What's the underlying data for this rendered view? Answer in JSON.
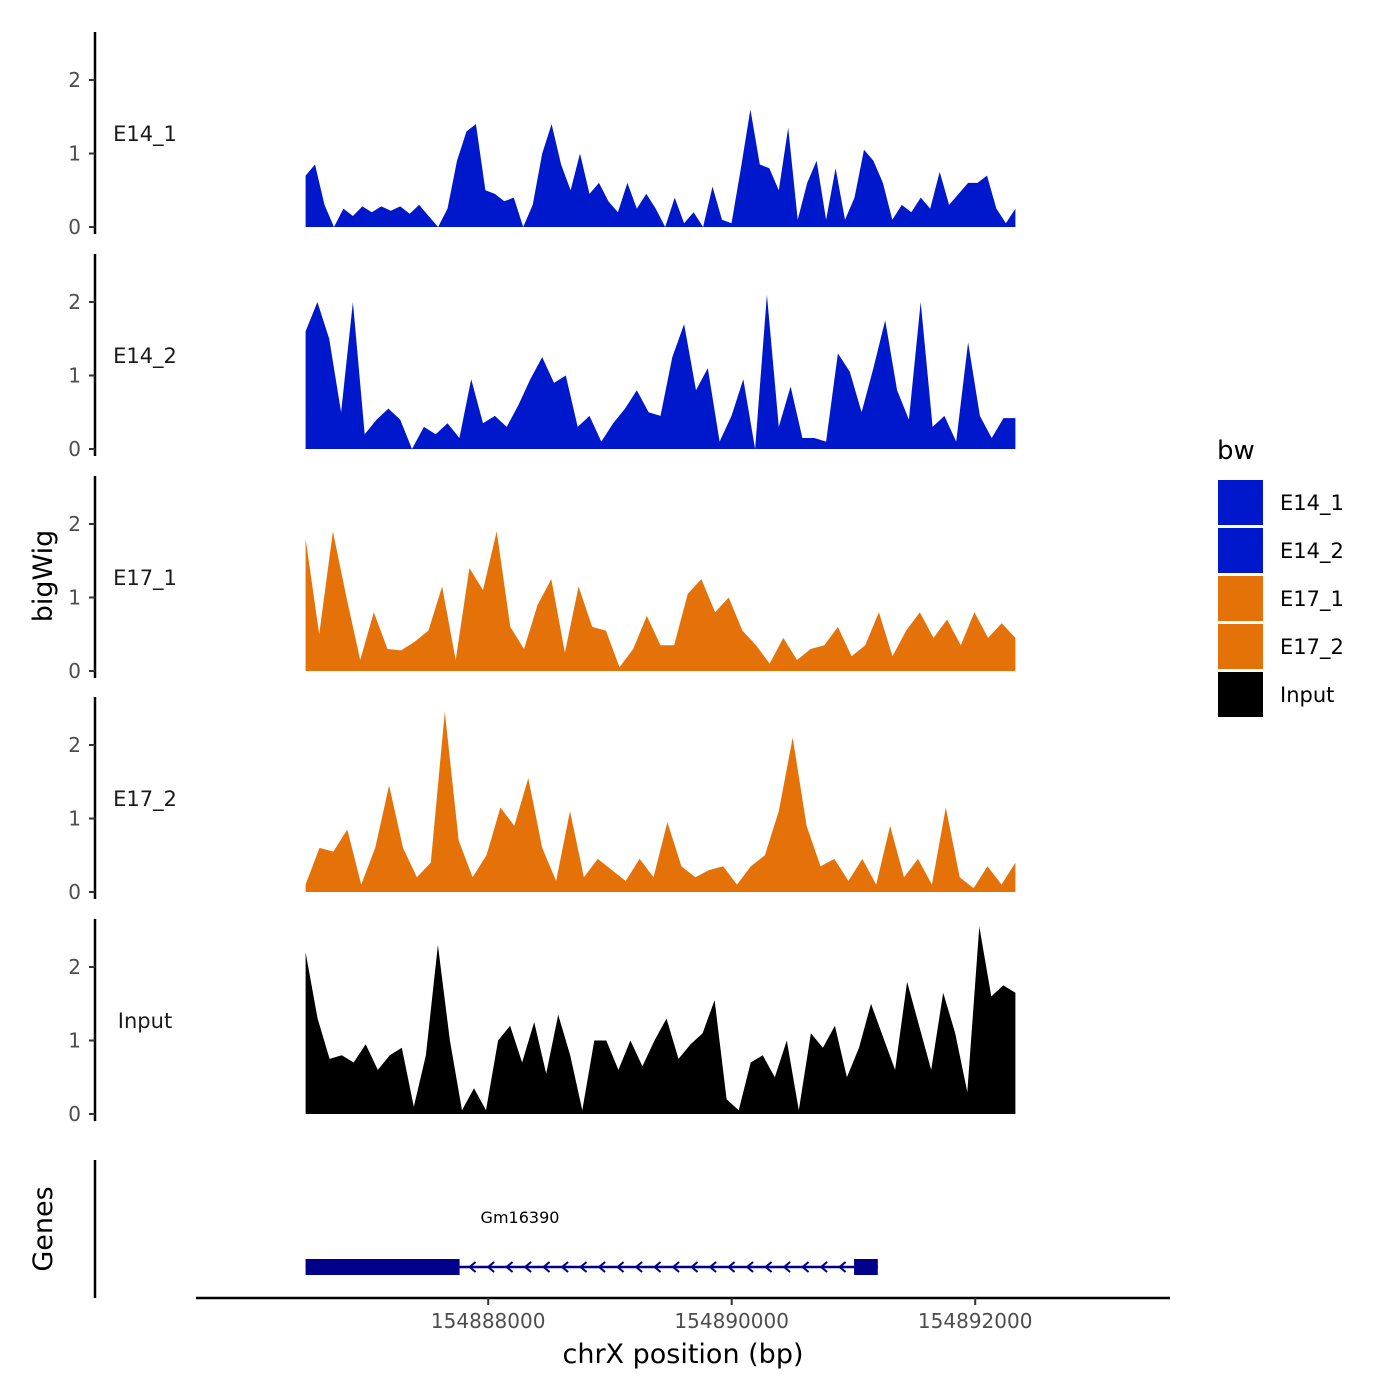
{
  "chart_data": {
    "type": "area",
    "title": "",
    "ylabel": "bigWig",
    "xlabel": "chrX position (bp)",
    "genes_label": "Genes",
    "ylim": [
      0,
      2.6
    ],
    "y_ticks": [
      "0",
      "1",
      "2"
    ],
    "x_ticks": [
      {
        "value": 154888000,
        "label": "154888000"
      },
      {
        "value": 154890000,
        "label": "154890000"
      },
      {
        "value": 154892000,
        "label": "154892000"
      }
    ],
    "xlim": [
      154885600,
      154893600
    ],
    "x_start": 154886500,
    "x_end": 154892330,
    "legend": {
      "title": "bw",
      "entries": [
        {
          "label": "E14_1",
          "color": "#0018CC"
        },
        {
          "label": "E14_2",
          "color": "#0018CC"
        },
        {
          "label": "E17_1",
          "color": "#E57208"
        },
        {
          "label": "E17_2",
          "color": "#E57208"
        },
        {
          "label": "Input",
          "color": "#000000"
        }
      ]
    },
    "series": [
      {
        "name": "E14_1",
        "color": "#0018CC",
        "values": [
          0.7,
          0.85,
          0.3,
          0,
          0.25,
          0.15,
          0.28,
          0.2,
          0.28,
          0.22,
          0.28,
          0.18,
          0.3,
          0.15,
          0,
          0.25,
          0.9,
          1.3,
          1.4,
          0.5,
          0.45,
          0.35,
          0.4,
          0,
          0.3,
          1.0,
          1.4,
          0.85,
          0.5,
          1.0,
          0.45,
          0.6,
          0.35,
          0.2,
          0.6,
          0.25,
          0.45,
          0.25,
          0,
          0.4,
          0.05,
          0.2,
          0,
          0.55,
          0.1,
          0.05,
          0.8,
          1.6,
          0.85,
          0.8,
          0.5,
          1.35,
          0.1,
          0.6,
          0.9,
          0.1,
          0.8,
          0.1,
          0.4,
          1.05,
          0.9,
          0.6,
          0.1,
          0.3,
          0.2,
          0.4,
          0.25,
          0.75,
          0.3,
          0.45,
          0.6,
          0.6,
          0.7,
          0.25,
          0.05,
          0.25
        ]
      },
      {
        "name": "E14_2",
        "color": "#0018CC",
        "values": [
          1.6,
          2.0,
          1.5,
          0.5,
          2.0,
          0.2,
          0.4,
          0.55,
          0.4,
          0,
          0.3,
          0.2,
          0.35,
          0.15,
          0.95,
          0.35,
          0.45,
          0.3,
          0.6,
          0.95,
          1.25,
          0.9,
          1.0,
          0.3,
          0.45,
          0.1,
          0.35,
          0.55,
          0.8,
          0.5,
          0.45,
          1.25,
          1.7,
          0.8,
          1.1,
          0.1,
          0.45,
          0.95,
          0,
          2.1,
          0.3,
          0.85,
          0.15,
          0.15,
          0.1,
          1.3,
          1.05,
          0.5,
          1.1,
          1.75,
          0.8,
          0.4,
          2.0,
          0.3,
          0.45,
          0.1,
          1.45,
          0.45,
          0.15,
          0.42,
          0.42
        ]
      },
      {
        "name": "E17_1",
        "color": "#E57208",
        "values": [
          1.8,
          0.5,
          1.9,
          1.0,
          0.15,
          0.8,
          0.3,
          0.28,
          0.4,
          0.55,
          1.15,
          0.15,
          1.4,
          1.1,
          1.9,
          0.6,
          0.3,
          0.9,
          1.25,
          0.25,
          1.15,
          0.6,
          0.55,
          0.05,
          0.3,
          0.75,
          0.35,
          0.35,
          1.05,
          1.25,
          0.8,
          1.0,
          0.55,
          0.35,
          0.1,
          0.45,
          0.15,
          0.3,
          0.35,
          0.6,
          0.2,
          0.35,
          0.8,
          0.2,
          0.55,
          0.8,
          0.45,
          0.7,
          0.35,
          0.8,
          0.45,
          0.65,
          0.45
        ]
      },
      {
        "name": "E17_2",
        "color": "#E57208",
        "values": [
          0.1,
          0.6,
          0.55,
          0.85,
          0.1,
          0.6,
          1.45,
          0.6,
          0.2,
          0.4,
          2.45,
          0.7,
          0.2,
          0.5,
          1.15,
          0.9,
          1.55,
          0.6,
          0.15,
          1.1,
          0.2,
          0.45,
          0.3,
          0.15,
          0.45,
          0.2,
          0.95,
          0.35,
          0.2,
          0.3,
          0.35,
          0.1,
          0.35,
          0.5,
          1.1,
          2.1,
          0.9,
          0.35,
          0.45,
          0.15,
          0.45,
          0.1,
          0.9,
          0.2,
          0.45,
          0.1,
          1.15,
          0.2,
          0.05,
          0.35,
          0.1,
          0.4
        ]
      },
      {
        "name": "Input",
        "color": "#000000",
        "values": [
          2.2,
          1.3,
          0.75,
          0.8,
          0.7,
          0.95,
          0.6,
          0.8,
          0.9,
          0.1,
          0.8,
          2.3,
          1.0,
          0.05,
          0.35,
          0.05,
          1.0,
          1.2,
          0.7,
          1.25,
          0.55,
          1.35,
          0.8,
          0.05,
          1.0,
          1.0,
          0.6,
          1.0,
          0.65,
          1.0,
          1.3,
          0.75,
          0.95,
          1.1,
          1.55,
          0.2,
          0.05,
          0.7,
          0.8,
          0.5,
          1.0,
          0.05,
          1.1,
          0.9,
          1.2,
          0.5,
          0.9,
          1.5,
          1.05,
          0.6,
          1.8,
          1.2,
          0.6,
          1.65,
          1.1,
          0.3,
          2.55,
          1.6,
          1.75,
          1.65
        ]
      }
    ],
    "gene": {
      "name": "Gm16390",
      "start": 154886500,
      "end": 154891200,
      "strand": "-",
      "color": "#00008B",
      "exons": [
        {
          "start": 154886500,
          "end": 154887765
        },
        {
          "start": 154891005,
          "end": 154891200
        }
      ]
    }
  }
}
